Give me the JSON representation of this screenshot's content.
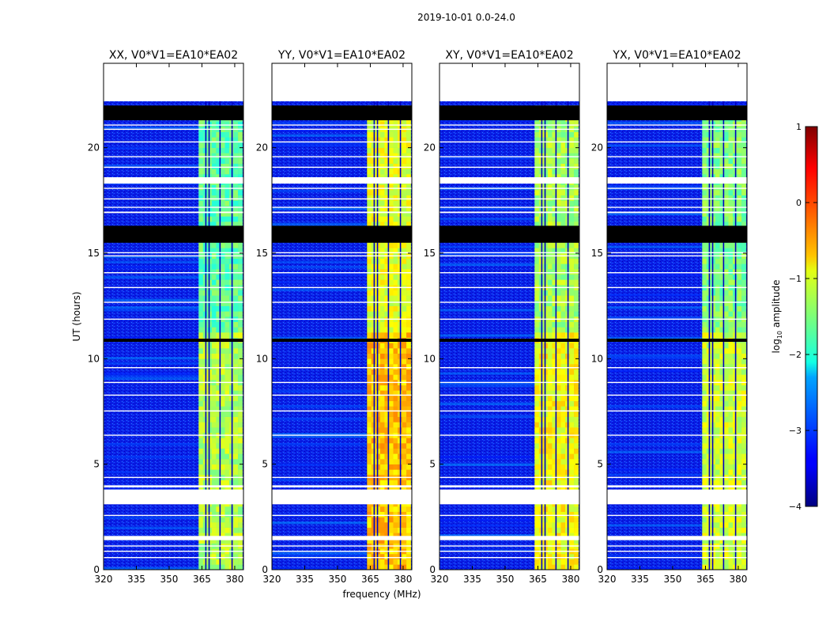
{
  "chart_data": {
    "type": "heatmap",
    "suptitle": "2019-10-01 0.0-24.0",
    "xlabel": "frequency (MHz)",
    "ylabel": "UT (hours)",
    "xlim": [
      320,
      384
    ],
    "ylim": [
      0,
      24
    ],
    "xticks": [
      320,
      335,
      350,
      365,
      380
    ],
    "yticks": [
      0,
      5,
      10,
      15,
      20
    ],
    "panels": [
      {
        "title": "XX, V0*V1=EA10*EA02",
        "band_level": 0.55
      },
      {
        "title": "YY, V0*V1=EA10*EA02",
        "band_level": 0.68
      },
      {
        "title": "XY, V0*V1=EA10*EA02",
        "band_level": 0.62
      },
      {
        "title": "YX, V0*V1=EA10*EA02",
        "band_level": 0.58
      }
    ],
    "signal_band_mhz": [
      363.5,
      383.0
    ],
    "band_gap_lines_mhz": [
      366.5,
      368.0,
      373.0,
      378.5
    ],
    "blank_rows_hours": [
      [
        22.2,
        24.0
      ],
      [
        3.9,
        4.0
      ],
      [
        3.1,
        3.8
      ],
      [
        1.4,
        1.6
      ],
      [
        16.9,
        16.97
      ],
      [
        18.3,
        18.6
      ]
    ],
    "flagged_rows_hours": [
      [
        21.3,
        21.9
      ],
      [
        16.3,
        15.5
      ],
      [
        10.8,
        10.95
      ]
    ],
    "colorbar": {
      "label": "log10 amplitude",
      "label_base": "log",
      "label_sub": "10",
      "label_rest": " amplitude",
      "range": [
        -4,
        1
      ],
      "ticks": [
        "1",
        "0",
        "−1",
        "−2",
        "−3",
        "−4"
      ],
      "colormap": "jet"
    }
  }
}
